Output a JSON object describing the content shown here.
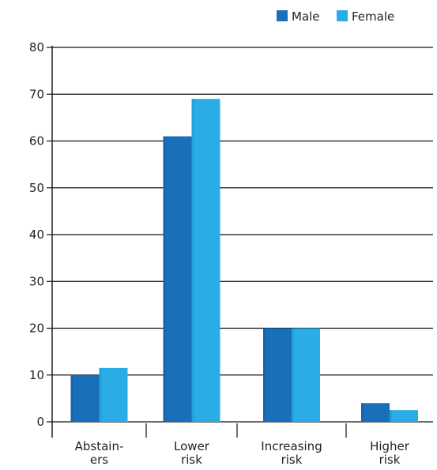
{
  "chart_data": {
    "type": "bar",
    "title": "",
    "xlabel": "",
    "ylabel": "",
    "ylim": [
      0,
      80
    ],
    "yticks": [
      0,
      10,
      20,
      30,
      40,
      50,
      60,
      70,
      80
    ],
    "grid": true,
    "legend_position": "top-right",
    "categories": [
      [
        "Abstain-",
        "ers"
      ],
      [
        "Lower",
        "risk"
      ],
      [
        "Increasing",
        "risk"
      ],
      [
        "Higher",
        "risk"
      ]
    ],
    "series": [
      {
        "name": "Male",
        "color": "#1a6fba",
        "shade": "#1565ad",
        "values": [
          10,
          61,
          20,
          4
        ]
      },
      {
        "name": "Female",
        "color": "#2aace6",
        "shade": "#23a2dc",
        "values": [
          11.5,
          69,
          20,
          2.5
        ]
      }
    ]
  }
}
